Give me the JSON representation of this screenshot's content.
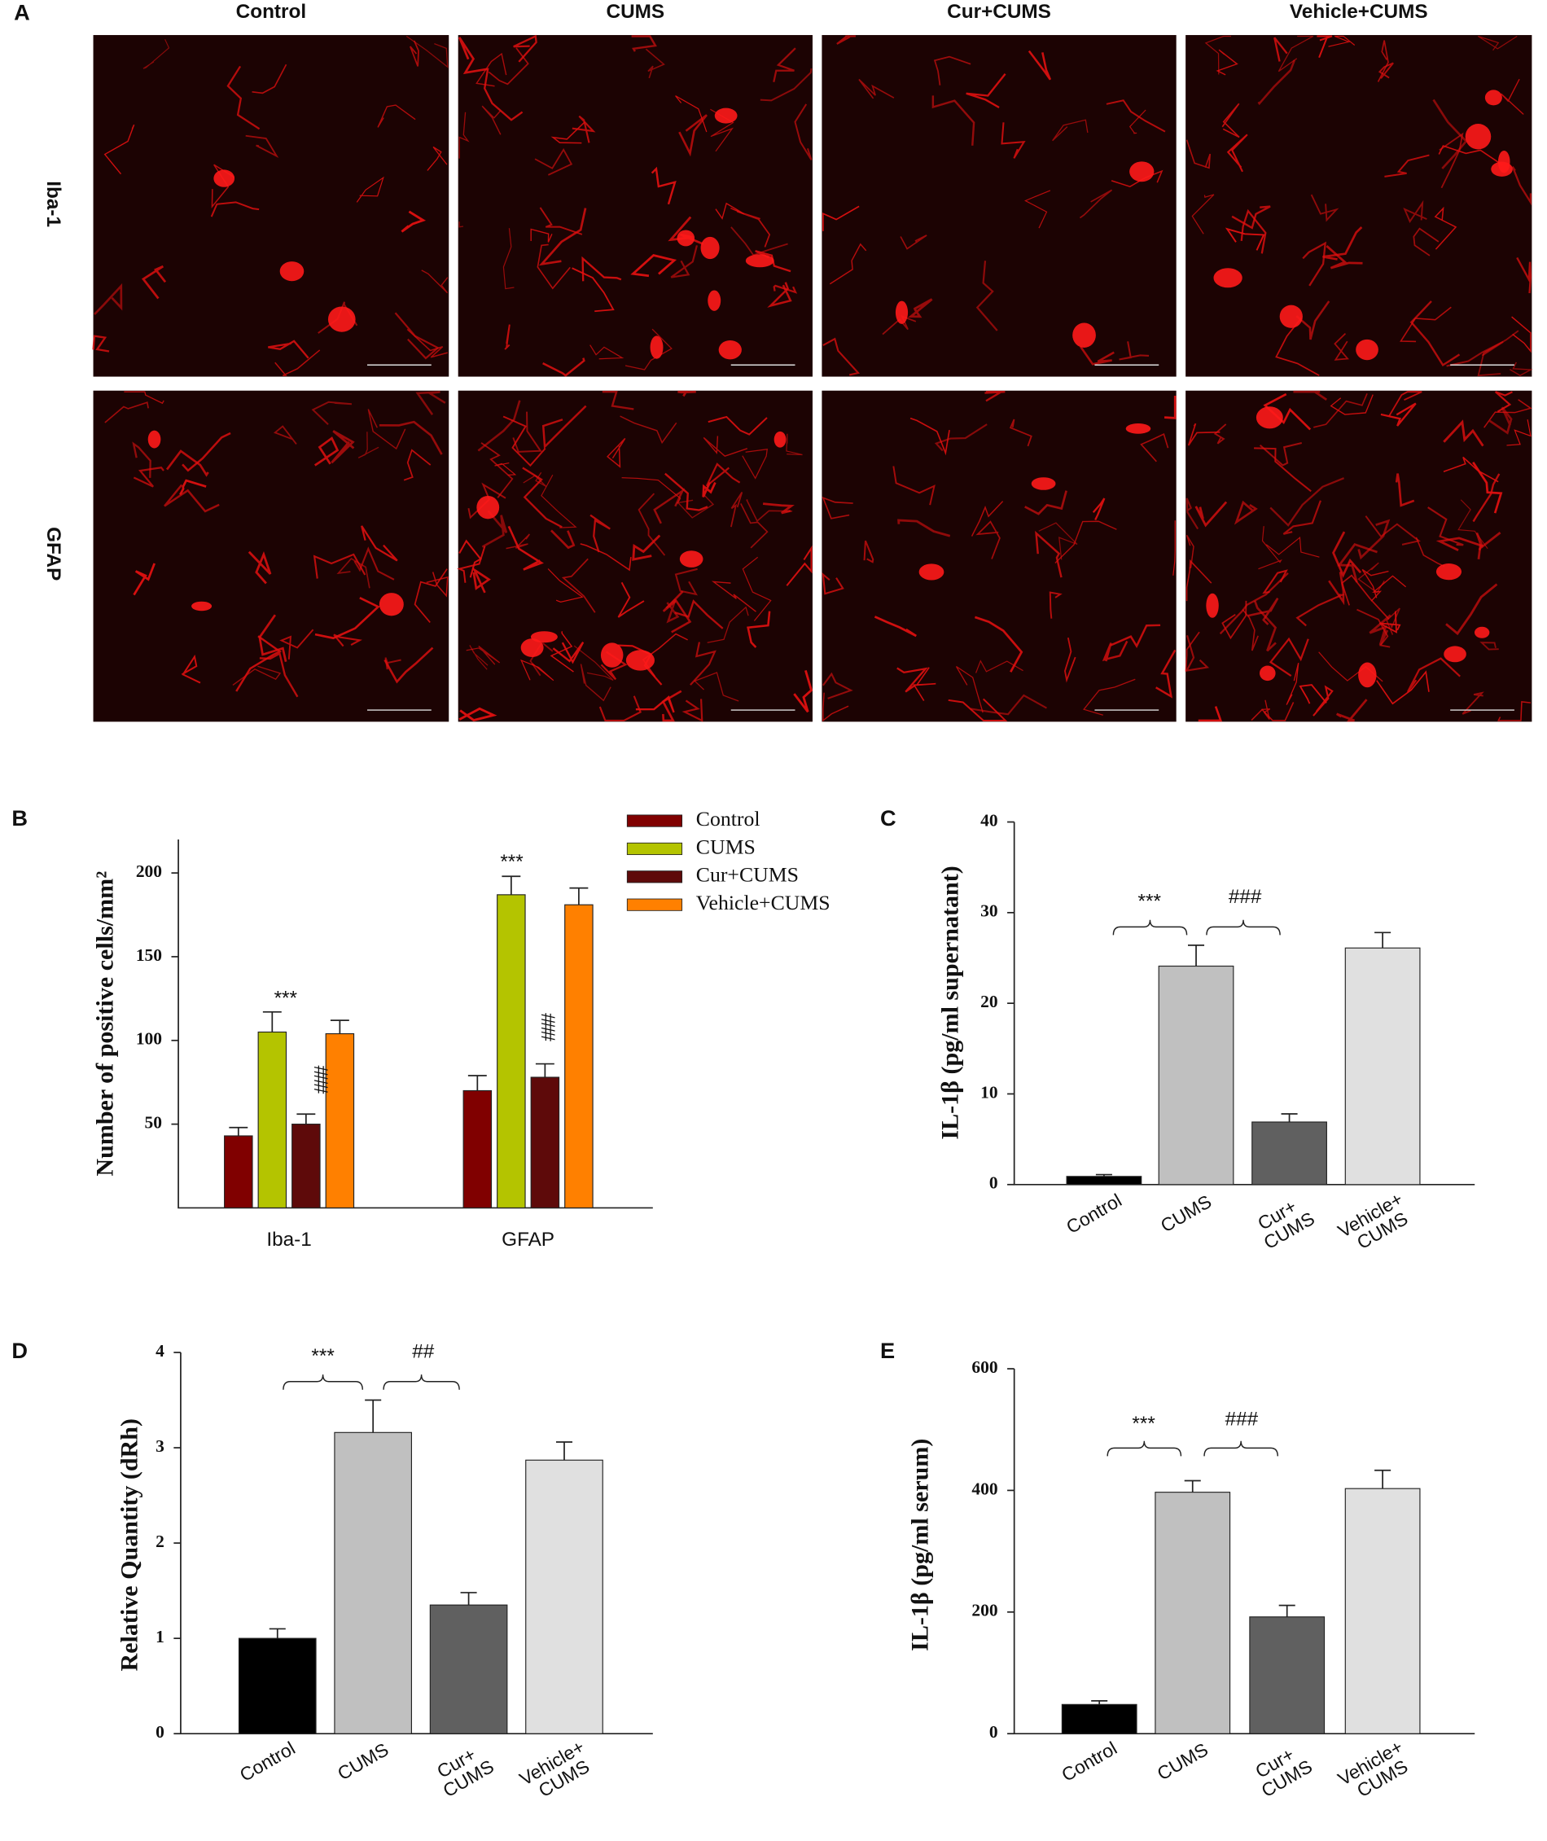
{
  "panels": {
    "letters": [
      "A",
      "B",
      "C",
      "D",
      "E"
    ],
    "columns": [
      "Control",
      "CUMS",
      "Cur+CUMS",
      "Vehicle+CUMS"
    ],
    "rows": [
      "Iba-1",
      "GFAP"
    ]
  },
  "chart_data": [
    {
      "type": "bar",
      "y_label": "Number of positive cells/mm²",
      "categories": [
        "Iba-1",
        "GFAP"
      ],
      "series": [
        {
          "name": "Control",
          "color": "#800000",
          "values": [
            43,
            70
          ],
          "errors": [
            5,
            9
          ]
        },
        {
          "name": "CUMS",
          "color": "#b4c400",
          "values": [
            105,
            187
          ],
          "errors": [
            12,
            11
          ]
        },
        {
          "name": "Cur+CUMS",
          "color": "#5e0a0a",
          "values": [
            50,
            78
          ],
          "errors": [
            6,
            8
          ]
        },
        {
          "name": "Vehicle+CUMS",
          "color": "#ff8000",
          "values": [
            104,
            181
          ],
          "errors": [
            8,
            10
          ]
        }
      ],
      "ylim": [
        0,
        220
      ],
      "yticks": [
        50,
        100,
        150,
        200
      ],
      "legend": "top-right",
      "annotations": [
        "***",
        "###",
        "***",
        "###"
      ]
    },
    {
      "type": "bar",
      "y_label": "IL-1β (pg/ml supernatant)",
      "categories": [
        "Control",
        "CUMS",
        "Cur+ CUMS",
        "Vehicle+ CUMS"
      ],
      "values": [
        0.9,
        24.1,
        6.9,
        26.1
      ],
      "errors": [
        0.2,
        2.3,
        0.9,
        1.7
      ],
      "colors": [
        "#000000",
        "#c0c0c0",
        "#606060",
        "#e0e0e0"
      ],
      "ylim": [
        0,
        40
      ],
      "yticks": [
        0,
        10,
        20,
        30,
        40
      ],
      "annotations": [
        "***",
        "###"
      ]
    },
    {
      "type": "bar",
      "y_label": "Relative Quantity (dRh)",
      "categories": [
        "Control",
        "CUMS",
        "Cur+ CUMS",
        "Vehicle+ CUMS"
      ],
      "values": [
        1.0,
        3.16,
        1.35,
        2.87
      ],
      "errors": [
        0.1,
        0.34,
        0.13,
        0.19
      ],
      "colors": [
        "#000000",
        "#c0c0c0",
        "#606060",
        "#e0e0e0"
      ],
      "ylim": [
        0,
        4
      ],
      "yticks": [
        0,
        1,
        2,
        3,
        4
      ],
      "annotations": [
        "***",
        "##"
      ]
    },
    {
      "type": "bar",
      "y_label": "IL-1β (pg/ml serum)",
      "categories": [
        "Control",
        "CUMS",
        "Cur+ CUMS",
        "Vehicle+ CUMS"
      ],
      "values": [
        48,
        397,
        192,
        403
      ],
      "errors": [
        6,
        19,
        19,
        30
      ],
      "colors": [
        "#000000",
        "#c0c0c0",
        "#606060",
        "#e0e0e0"
      ],
      "ylim": [
        0,
        600
      ],
      "yticks": [
        0,
        200,
        400,
        600
      ],
      "annotations": [
        "***",
        "###"
      ]
    }
  ]
}
